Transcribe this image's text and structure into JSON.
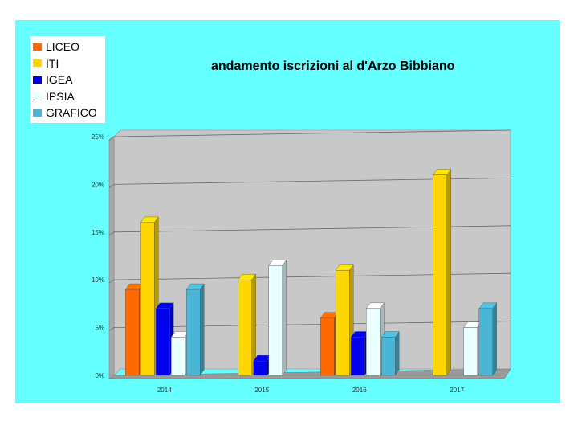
{
  "chart_data": {
    "type": "bar",
    "title": "andamento iscrizioni al d'Arzo Bibbiano",
    "categories": [
      "2014",
      "2015",
      "2016",
      "2017"
    ],
    "series": [
      {
        "name": "LICEO",
        "color": "#ff6a00",
        "values": [
          9,
          null,
          6,
          null
        ]
      },
      {
        "name": "ITI",
        "color": "#ffd700",
        "values": [
          16,
          10,
          11,
          21
        ]
      },
      {
        "name": "IGEA",
        "color": "#0000ee",
        "values": [
          7,
          1.5,
          4,
          null
        ]
      },
      {
        "name": "IPSIA",
        "color": "#eaffff",
        "values": [
          4,
          11.5,
          7,
          5
        ]
      },
      {
        "name": "GRAFICO",
        "color": "#4ab5d4",
        "values": [
          9,
          null,
          4,
          7
        ]
      }
    ],
    "y_ticks": [
      "0%",
      "5%",
      "10%",
      "15%",
      "20%",
      "25%"
    ],
    "ylim": [
      0,
      25
    ],
    "grid": true,
    "legend_position": "top-left"
  }
}
